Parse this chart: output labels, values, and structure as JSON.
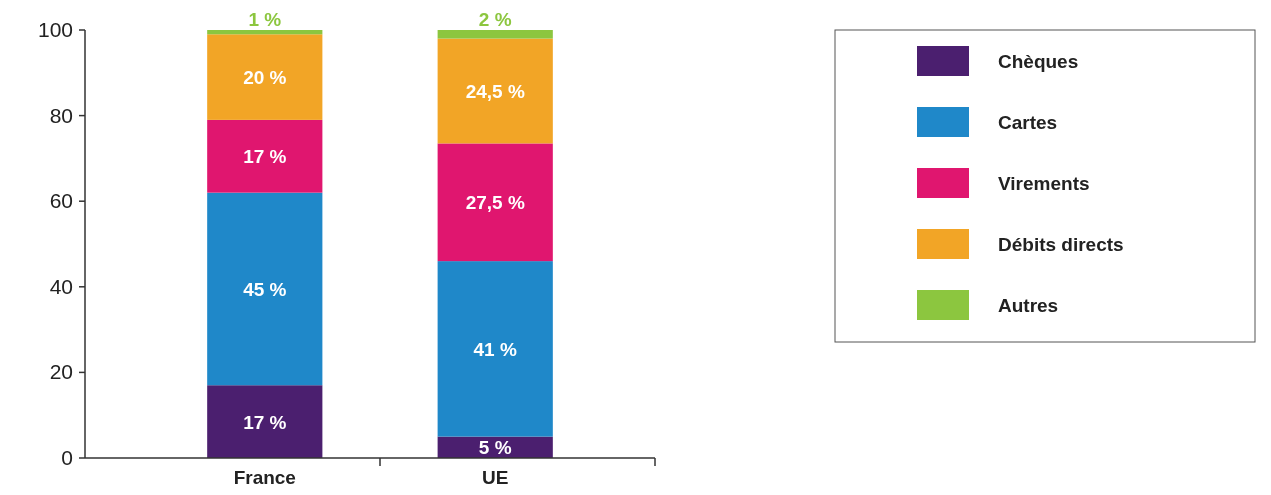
{
  "chart_data": {
    "type": "bar",
    "stacked": true,
    "categories": [
      "France",
      "UE"
    ],
    "series": [
      {
        "name": "Chèques",
        "color": "#4b1f6f",
        "values": [
          17,
          5
        ],
        "value_labels": [
          "17 %",
          "5 %"
        ]
      },
      {
        "name": "Cartes",
        "color": "#1f88c9",
        "values": [
          45,
          41
        ],
        "value_labels": [
          "45 %",
          "41 %"
        ]
      },
      {
        "name": "Virements",
        "color": "#e0166f",
        "values": [
          17,
          27.5
        ],
        "value_labels": [
          "17 %",
          "27,5 %"
        ]
      },
      {
        "name": "Débits directs",
        "color": "#f2a526",
        "values": [
          20,
          24.5
        ],
        "value_labels": [
          "20 %",
          "24,5 %"
        ]
      },
      {
        "name": "Autres",
        "color": "#8cc63f",
        "values": [
          1,
          2
        ],
        "value_labels": [
          "1 %",
          "2 %"
        ]
      }
    ],
    "ylim": [
      0,
      100
    ],
    "yticks": [
      0,
      20,
      40,
      60,
      80,
      100
    ],
    "legend": "right",
    "grid": false
  }
}
